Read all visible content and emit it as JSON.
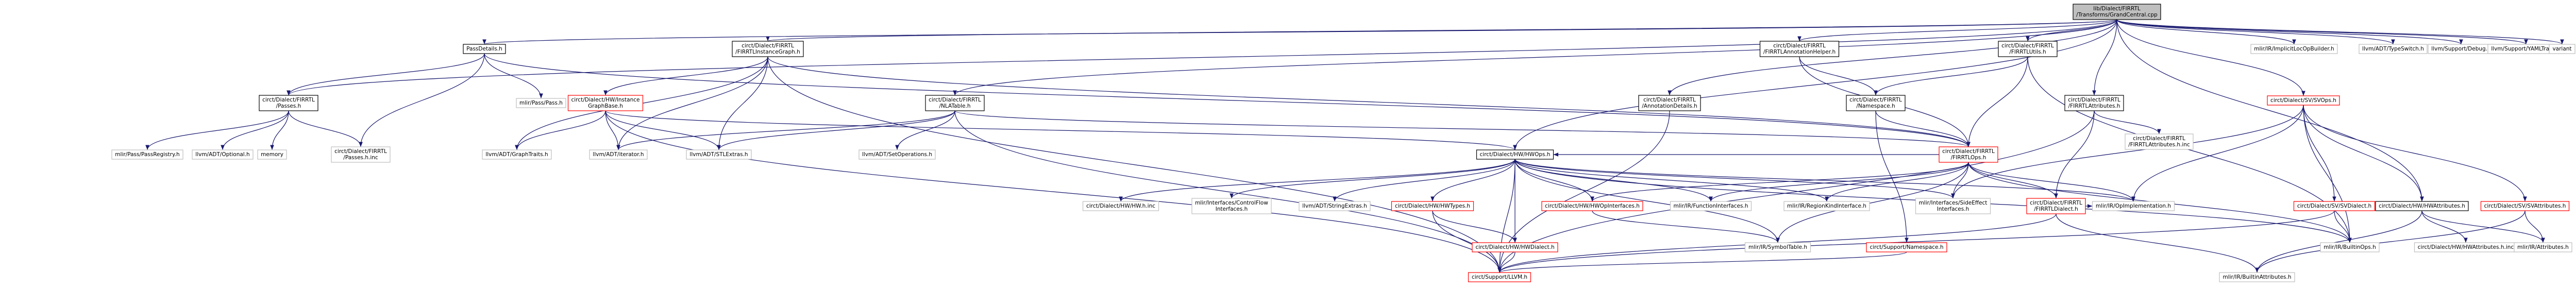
{
  "colors": {
    "edge": "#191970",
    "root_fill": "#bfbfbf",
    "node_fill": "#ffffff",
    "node_border": "#000000",
    "red_border": "#ff0000",
    "gray_border": "#bfbfbf"
  },
  "nodes": [
    {
      "id": "root",
      "lines": [
        "lib/Dialect/FIRRTL",
        "/Transforms/GrandCentral.cpp"
      ],
      "style": "root"
    },
    {
      "id": "passdetails",
      "lines": [
        "PassDetails.h"
      ],
      "style": "normal"
    },
    {
      "id": "instancegraph",
      "lines": [
        "circt/Dialect/FIRRTL",
        "/FIRRTLInstanceGraph.h"
      ],
      "style": "normal"
    },
    {
      "id": "annotationhelper",
      "lines": [
        "circt/Dialect/FIRRTL",
        "/FIRRTLAnnotationHelper.h"
      ],
      "style": "normal"
    },
    {
      "id": "firrtlutils",
      "lines": [
        "circt/Dialect/FIRRTL",
        "/FIRRTLUtils.h"
      ],
      "style": "normal"
    },
    {
      "id": "apint",
      "lines": [
        "mlir/IR/ImplicitLocOpBuilder.h"
      ],
      "style": "gray"
    },
    {
      "id": "typeswitch",
      "lines": [
        "llvm/ADT/TypeSwitch.h"
      ],
      "style": "gray"
    },
    {
      "id": "debug",
      "lines": [
        "llvm/Support/Debug.h"
      ],
      "style": "gray"
    },
    {
      "id": "yamltraits",
      "lines": [
        "llvm/Support/YAMLTraits.h"
      ],
      "style": "gray"
    },
    {
      "id": "variant",
      "lines": [
        "variant"
      ],
      "style": "gray"
    },
    {
      "id": "passes",
      "lines": [
        "circt/Dialect/FIRRTL",
        "/Passes.h"
      ],
      "style": "normal"
    },
    {
      "id": "passpasses",
      "lines": [
        "mlir/Pass/Pass.h"
      ],
      "style": "gray"
    },
    {
      "id": "instancegraphbase",
      "lines": [
        "circt/Dialect/HW/Instance",
        "GraphBase.h"
      ],
      "style": "red"
    },
    {
      "id": "nltable",
      "lines": [
        "circt/Dialect/FIRRTL",
        "/NLATable.h"
      ],
      "style": "normal"
    },
    {
      "id": "annotationdetails",
      "lines": [
        "circt/Dialect/FIRRTL",
        "/AnnotationDetails.h"
      ],
      "style": "normal"
    },
    {
      "id": "namespace",
      "lines": [
        "circt/Dialect/FIRRTL",
        "/Namespace.h"
      ],
      "style": "normal"
    },
    {
      "id": "firrtlattributes",
      "lines": [
        "circt/Dialect/FIRRTL",
        "/FIRRTLAttributes.h"
      ],
      "style": "normal"
    },
    {
      "id": "svops",
      "lines": [
        "circt/Dialect/SV/SVOps.h"
      ],
      "style": "red"
    },
    {
      "id": "passregistry",
      "lines": [
        "mlir/Pass/PassRegistry.h"
      ],
      "style": "gray"
    },
    {
      "id": "optional",
      "lines": [
        "llvm/ADT/Optional.h"
      ],
      "style": "gray"
    },
    {
      "id": "memory",
      "lines": [
        "memory"
      ],
      "style": "gray"
    },
    {
      "id": "passesinc",
      "lines": [
        "circt/Dialect/FIRRTL",
        "/Passes.h.inc"
      ],
      "style": "gray"
    },
    {
      "id": "graphtraits",
      "lines": [
        "llvm/ADT/GraphTraits.h"
      ],
      "style": "gray"
    },
    {
      "id": "iterator",
      "lines": [
        "llvm/ADT/iterator.h"
      ],
      "style": "gray"
    },
    {
      "id": "stlextras",
      "lines": [
        "llvm/ADT/STLExtras.h"
      ],
      "style": "gray"
    },
    {
      "id": "setoperations",
      "lines": [
        "llvm/ADT/SetOperations.h"
      ],
      "style": "gray"
    },
    {
      "id": "hwops",
      "lines": [
        "circt/Dialect/HW/HWOps.h"
      ],
      "style": "normal"
    },
    {
      "id": "firrtlops",
      "lines": [
        "circt/Dialect/FIRRTL",
        "/FIRRTLOps.h"
      ],
      "style": "red"
    },
    {
      "id": "firrtlattrsinc",
      "lines": [
        "circt/Dialect/FIRRTL",
        "/FIRRTLAttributes.h.inc"
      ],
      "style": "gray"
    },
    {
      "id": "svdialect",
      "lines": [
        "circt/Dialect/SV/SVDialect.h"
      ],
      "style": "red"
    },
    {
      "id": "svattributes",
      "lines": [
        "circt/Dialect/SV/SVAttributes.h"
      ],
      "style": "red"
    },
    {
      "id": "hwattributes",
      "lines": [
        "circt/Dialect/HW/HWAttributes.h"
      ],
      "style": "normal"
    },
    {
      "id": "hwhinc",
      "lines": [
        "circt/Dialect/HW/HW.h.inc"
      ],
      "style": "gray"
    },
    {
      "id": "controlflow",
      "lines": [
        "mlir/Interfaces/ControlFlow",
        "Interfaces.h"
      ],
      "style": "gray"
    },
    {
      "id": "stringextras",
      "lines": [
        "llvm/ADT/StringExtras.h"
      ],
      "style": "gray"
    },
    {
      "id": "hwtypes",
      "lines": [
        "circt/Dialect/HW/HWTypes.h"
      ],
      "style": "red"
    },
    {
      "id": "hwopinterfaces",
      "lines": [
        "circt/Dialect/HW/HWOpInterfaces.h"
      ],
      "style": "red"
    },
    {
      "id": "functioninterfaces",
      "lines": [
        "mlir/IR/FunctionInterfaces.h"
      ],
      "style": "gray"
    },
    {
      "id": "regionkind",
      "lines": [
        "mlir/IR/RegionKindInterface.h"
      ],
      "style": "gray"
    },
    {
      "id": "sideeffect",
      "lines": [
        "mlir/Interfaces/SideEffect",
        "Interfaces.h"
      ],
      "style": "gray"
    },
    {
      "id": "opimplementation",
      "lines": [
        "mlir/IR/OpImplementation.h"
      ],
      "style": "gray"
    },
    {
      "id": "firrtldialect",
      "lines": [
        "circt/Dialect/FIRRTL",
        "/FIRRTLDialect.h"
      ],
      "style": "red"
    },
    {
      "id": "hwattrsinc",
      "lines": [
        "circt/Dialect/HW/HWAttributes.h.inc"
      ],
      "style": "gray"
    },
    {
      "id": "attributes",
      "lines": [
        "mlir/IR/Attributes.h"
      ],
      "style": "gray"
    },
    {
      "id": "hwdialect",
      "lines": [
        "circt/Dialect/HW/HWDialect.h"
      ],
      "style": "red"
    },
    {
      "id": "symboltable",
      "lines": [
        "mlir/IR/SymbolTable.h"
      ],
      "style": "gray"
    },
    {
      "id": "supportnamespace",
      "lines": [
        "circt/Support/Namespace.h"
      ],
      "style": "red"
    },
    {
      "id": "builtinops",
      "lines": [
        "mlir/IR/BuiltinOps.h"
      ],
      "style": "gray"
    },
    {
      "id": "llvm",
      "lines": [
        "circt/Support/LLVM.h"
      ],
      "style": "red"
    },
    {
      "id": "builtinattributes",
      "lines": [
        "mlir/IR/BuiltinAttributes.h"
      ],
      "style": "gray"
    }
  ],
  "edges": [
    [
      "root",
      "passdetails"
    ],
    [
      "root",
      "instancegraph"
    ],
    [
      "root",
      "annotationhelper"
    ],
    [
      "root",
      "firrtlutils"
    ],
    [
      "root",
      "apint"
    ],
    [
      "root",
      "typeswitch"
    ],
    [
      "root",
      "debug"
    ],
    [
      "root",
      "yamltraits"
    ],
    [
      "root",
      "variant"
    ],
    [
      "root",
      "passes"
    ],
    [
      "root",
      "nltable"
    ],
    [
      "root",
      "annotationdetails"
    ],
    [
      "root",
      "firrtlattributes"
    ],
    [
      "root",
      "svops"
    ],
    [
      "root",
      "hwattributes"
    ],
    [
      "root",
      "hwops"
    ],
    [
      "passdetails",
      "passes"
    ],
    [
      "passdetails",
      "passpasses"
    ],
    [
      "passdetails",
      "passesinc"
    ],
    [
      "passdetails",
      "firrtlops"
    ],
    [
      "passes",
      "passregistry"
    ],
    [
      "passes",
      "optional"
    ],
    [
      "passes",
      "memory"
    ],
    [
      "passes",
      "passesinc"
    ],
    [
      "instancegraph",
      "instancegraphbase"
    ],
    [
      "instancegraph",
      "graphtraits"
    ],
    [
      "instancegraph",
      "iterator"
    ],
    [
      "instancegraph",
      "stlextras"
    ],
    [
      "instancegraph",
      "firrtlops"
    ],
    [
      "instancegraph",
      "llvm"
    ],
    [
      "instancegraphbase",
      "graphtraits"
    ],
    [
      "instancegraphbase",
      "iterator"
    ],
    [
      "instancegraphbase",
      "hwops"
    ],
    [
      "instancegraphbase",
      "llvm"
    ],
    [
      "instancegraphbase",
      "stlextras"
    ],
    [
      "nltable",
      "iterator"
    ],
    [
      "nltable",
      "stlextras"
    ],
    [
      "nltable",
      "setoperations"
    ],
    [
      "nltable",
      "firrtlops"
    ],
    [
      "nltable",
      "llvm"
    ],
    [
      "annotationhelper",
      "firrtlops"
    ],
    [
      "annotationhelper",
      "namespace"
    ],
    [
      "firrtlutils",
      "namespace"
    ],
    [
      "firrtlutils",
      "firrtlops"
    ],
    [
      "firrtlutils",
      "builtinops"
    ],
    [
      "annotationdetails",
      "llvm"
    ],
    [
      "namespace",
      "firrtlops"
    ],
    [
      "namespace",
      "supportnamespace"
    ],
    [
      "firrtlattributes",
      "firrtldialect"
    ],
    [
      "firrtlattributes",
      "firrtlattrsinc"
    ],
    [
      "firrtlattributes",
      "llvm"
    ],
    [
      "svops",
      "svdialect"
    ],
    [
      "svops",
      "svattributes"
    ],
    [
      "svops",
      "hwattributes"
    ],
    [
      "svops",
      "opimplementation"
    ],
    [
      "svops",
      "builtinops"
    ],
    [
      "svops",
      "sideeffect"
    ],
    [
      "svdialect",
      "builtinops"
    ],
    [
      "svdialect",
      "llvm"
    ],
    [
      "svattributes",
      "attributes"
    ],
    [
      "svattributes",
      "builtinattributes"
    ],
    [
      "hwattributes",
      "hwattrsinc"
    ],
    [
      "hwattributes",
      "builtinattributes"
    ],
    [
      "hwattributes",
      "attributes"
    ],
    [
      "hwops",
      "hwhinc"
    ],
    [
      "hwops",
      "controlflow"
    ],
    [
      "hwops",
      "stringextras"
    ],
    [
      "hwops",
      "hwtypes"
    ],
    [
      "hwops",
      "hwopinterfaces"
    ],
    [
      "hwops",
      "functioninterfaces"
    ],
    [
      "hwops",
      "regionkind"
    ],
    [
      "hwops",
      "sideeffect"
    ],
    [
      "hwops",
      "opimplementation"
    ],
    [
      "hwops",
      "hwdialect"
    ],
    [
      "hwops",
      "symboltable"
    ],
    [
      "hwops",
      "builtinops"
    ],
    [
      "hwops",
      "llvm"
    ],
    [
      "firrtlops",
      "hwops"
    ],
    [
      "firrtlops",
      "firrtldialect"
    ],
    [
      "firrtlops",
      "hwopinterfaces"
    ],
    [
      "firrtlops",
      "functioninterfaces"
    ],
    [
      "firrtlops",
      "regionkind"
    ],
    [
      "firrtlops",
      "sideeffect"
    ],
    [
      "firrtlops",
      "opimplementation"
    ],
    [
      "firrtlops",
      "symboltable"
    ],
    [
      "firrtlops",
      "builtinops"
    ],
    [
      "hwtypes",
      "hwdialect"
    ],
    [
      "hwtypes",
      "llvm"
    ],
    [
      "hwopinterfaces",
      "symboltable"
    ],
    [
      "hwdialect",
      "llvm"
    ],
    [
      "firrtldialect",
      "opimplementation"
    ],
    [
      "firrtldialect",
      "llvm"
    ],
    [
      "firrtldialect",
      "builtinattributes"
    ],
    [
      "supportnamespace",
      "llvm"
    ]
  ]
}
